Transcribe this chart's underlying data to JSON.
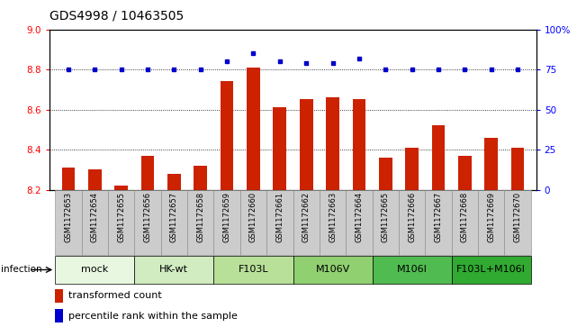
{
  "title": "GDS4998 / 10463505",
  "samples": [
    "GSM1172653",
    "GSM1172654",
    "GSM1172655",
    "GSM1172656",
    "GSM1172657",
    "GSM1172658",
    "GSM1172659",
    "GSM1172660",
    "GSM1172661",
    "GSM1172662",
    "GSM1172663",
    "GSM1172664",
    "GSM1172665",
    "GSM1172666",
    "GSM1172667",
    "GSM1172668",
    "GSM1172669",
    "GSM1172670"
  ],
  "red_values": [
    8.31,
    8.3,
    8.22,
    8.37,
    8.28,
    8.32,
    8.74,
    8.81,
    8.61,
    8.65,
    8.66,
    8.65,
    8.36,
    8.41,
    8.52,
    8.37,
    8.46,
    8.41
  ],
  "blue_values": [
    75,
    75,
    75,
    75,
    75,
    75,
    80,
    85,
    80,
    79,
    79,
    82,
    75,
    75,
    75,
    75,
    75,
    75
  ],
  "ylim_left": [
    8.2,
    9.0
  ],
  "ylim_right": [
    0,
    100
  ],
  "yticks_left": [
    8.2,
    8.4,
    8.6,
    8.8,
    9.0
  ],
  "yticks_right": [
    0,
    25,
    50,
    75,
    100
  ],
  "ytick_labels_right": [
    "0",
    "25",
    "50",
    "75",
    "100%"
  ],
  "groups": [
    {
      "label": "mock",
      "start": 0,
      "end": 3,
      "color": "#e8f8e0"
    },
    {
      "label": "HK-wt",
      "start": 3,
      "end": 6,
      "color": "#d0ecc0"
    },
    {
      "label": "F103L",
      "start": 6,
      "end": 9,
      "color": "#b8e098"
    },
    {
      "label": "M106V",
      "start": 9,
      "end": 12,
      "color": "#90d070"
    },
    {
      "label": "M106I",
      "start": 12,
      "end": 15,
      "color": "#50bb50"
    },
    {
      "label": "F103L+M106I",
      "start": 15,
      "end": 18,
      "color": "#30aa30"
    }
  ],
  "bar_color": "#cc2200",
  "dot_color": "#0000cc",
  "bar_width": 0.5,
  "infection_label": "infection",
  "legend_red": "transformed count",
  "legend_blue": "percentile rank within the sample",
  "sample_box_color": "#cccccc",
  "sample_box_edge": "#888888",
  "title_fontsize": 10,
  "tick_fontsize": 7.5,
  "sample_fontsize": 6.0,
  "group_fontsize": 8,
  "legend_fontsize": 8
}
